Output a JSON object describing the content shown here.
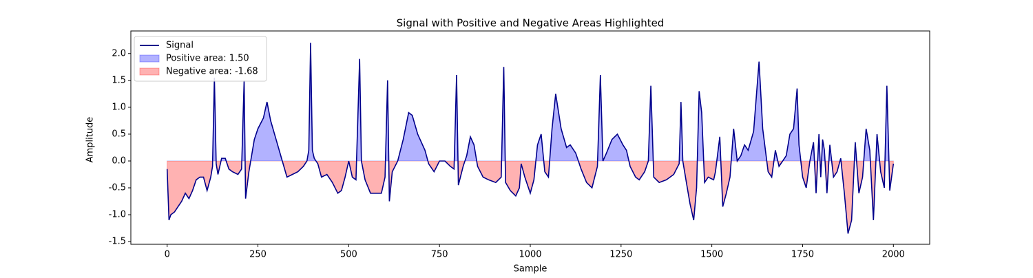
{
  "chart_data": {
    "type": "line",
    "title": "Signal with Positive and Negative Areas Highlighted",
    "xlabel": "Sample",
    "ylabel": "Amplitude",
    "x": [
      0,
      5,
      10,
      20,
      30,
      40,
      50,
      60,
      70,
      80,
      90,
      100,
      110,
      120,
      125,
      130,
      135,
      140,
      150,
      160,
      170,
      180,
      195,
      205,
      212,
      216,
      225,
      240,
      250,
      265,
      275,
      285,
      300,
      315,
      330,
      345,
      360,
      375,
      385,
      390,
      395,
      400,
      405,
      415,
      425,
      440,
      455,
      470,
      480,
      490,
      500,
      510,
      520,
      530,
      535,
      545,
      560,
      575,
      590,
      600,
      607,
      612,
      620,
      635,
      650,
      665,
      675,
      690,
      710,
      720,
      735,
      750,
      765,
      780,
      790,
      797,
      802,
      815,
      825,
      835,
      845,
      855,
      870,
      885,
      905,
      920,
      927,
      932,
      945,
      960,
      970,
      975,
      985,
      1000,
      1010,
      1020,
      1030,
      1040,
      1050,
      1060,
      1070,
      1085,
      1100,
      1110,
      1125,
      1140,
      1155,
      1170,
      1185,
      1193,
      1200,
      1210,
      1225,
      1240,
      1255,
      1265,
      1275,
      1290,
      1300,
      1315,
      1325,
      1332,
      1340,
      1355,
      1375,
      1395,
      1410,
      1415,
      1420,
      1430,
      1440,
      1450,
      1458,
      1465,
      1472,
      1480,
      1490,
      1505,
      1510,
      1522,
      1530,
      1540,
      1550,
      1560,
      1570,
      1580,
      1590,
      1600,
      1615,
      1630,
      1640,
      1655,
      1665,
      1675,
      1685,
      1695,
      1705,
      1715,
      1725,
      1735,
      1740,
      1750,
      1760,
      1770,
      1780,
      1787,
      1795,
      1800,
      1805,
      1810,
      1817,
      1825,
      1835,
      1845,
      1855,
      1865,
      1875,
      1885,
      1895,
      1905,
      1915,
      1925,
      1935,
      1945,
      1955,
      1965,
      1975,
      1982,
      1990,
      2000
    ],
    "series": [
      {
        "name": "Signal",
        "color": "#00008b",
        "values": [
          -0.15,
          -1.1,
          -1.0,
          -0.95,
          -0.85,
          -0.75,
          -0.6,
          -0.7,
          -0.55,
          -0.35,
          -0.3,
          -0.3,
          -0.55,
          -0.3,
          -0.1,
          1.55,
          -0.05,
          -0.25,
          0.05,
          0.05,
          -0.15,
          -0.2,
          -0.25,
          -0.15,
          1.5,
          -0.7,
          -0.2,
          0.4,
          0.6,
          0.8,
          1.1,
          0.75,
          0.4,
          0.05,
          -0.3,
          -0.25,
          -0.2,
          -0.1,
          0.0,
          0.2,
          2.2,
          0.2,
          0.05,
          -0.05,
          -0.3,
          -0.25,
          -0.4,
          -0.6,
          -0.55,
          -0.3,
          0.0,
          -0.3,
          -0.35,
          1.9,
          0.0,
          -0.35,
          -0.6,
          -0.6,
          -0.6,
          -0.3,
          1.5,
          -0.75,
          -0.2,
          0.0,
          0.4,
          0.9,
          0.85,
          0.5,
          0.2,
          -0.05,
          -0.2,
          0.0,
          0.0,
          -0.1,
          -0.15,
          1.6,
          -0.45,
          -0.1,
          0.1,
          0.45,
          0.3,
          -0.1,
          -0.3,
          -0.35,
          -0.4,
          -0.3,
          1.75,
          -0.4,
          -0.55,
          -0.65,
          -0.5,
          -0.05,
          -0.3,
          -0.6,
          -0.35,
          0.3,
          0.5,
          -0.2,
          -0.3,
          0.6,
          1.25,
          0.6,
          0.25,
          0.3,
          0.15,
          -0.15,
          -0.4,
          -0.5,
          -0.1,
          1.6,
          0.0,
          0.15,
          0.4,
          0.5,
          0.3,
          0.2,
          -0.1,
          -0.3,
          -0.35,
          -0.2,
          0.0,
          1.4,
          -0.3,
          -0.4,
          -0.35,
          -0.25,
          -0.05,
          1.1,
          0.0,
          -0.4,
          -0.8,
          -1.1,
          -0.5,
          1.3,
          0.9,
          -0.4,
          -0.3,
          -0.35,
          -0.2,
          0.45,
          -0.85,
          -0.6,
          -0.3,
          0.6,
          0.0,
          0.1,
          0.3,
          0.2,
          0.55,
          1.85,
          0.6,
          -0.2,
          -0.3,
          0.2,
          -0.1,
          0.0,
          0.1,
          0.5,
          0.6,
          1.35,
          0.3,
          -0.3,
          -0.5,
          0.0,
          0.35,
          -0.6,
          0.5,
          -0.3,
          0.4,
          0.2,
          -0.6,
          0.3,
          -0.3,
          -0.2,
          0.05,
          -0.6,
          -1.35,
          -1.1,
          0.35,
          -0.6,
          -0.3,
          0.6,
          0.2,
          -1.1,
          0.5,
          -0.2,
          -0.5,
          1.4,
          -0.55,
          -0.05
        ]
      }
    ],
    "fills": [
      {
        "name": "Positive area: 1.50",
        "color": "#0000ff"
      },
      {
        "name": "Negative area: -1.68",
        "color": "#ff0000"
      }
    ],
    "xlim": [
      -100,
      2100
    ],
    "ylim": [
      -1.55,
      2.42
    ],
    "xticks": [
      0,
      250,
      500,
      750,
      1000,
      1250,
      1500,
      1750,
      2000
    ],
    "yticks": [
      -1.5,
      {
        "value": -1,
        "label": "-1.0"
      },
      -0.5,
      {
        "value": 0,
        "label": "0.0"
      },
      0.5,
      {
        "value": 1,
        "label": "1.0"
      },
      1.5,
      {
        "value": 2,
        "label": "2.0"
      }
    ],
    "legend": "upper left"
  }
}
